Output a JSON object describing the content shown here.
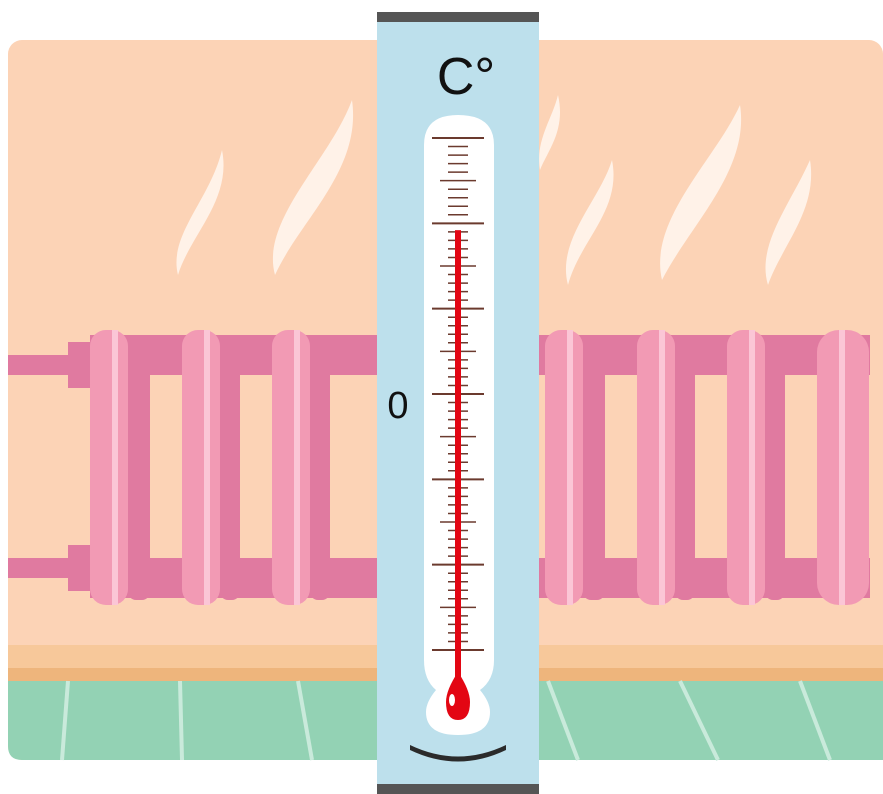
{
  "thermometer": {
    "unit_label": "C°",
    "zero_label": "0",
    "reading_fraction_of_scale": 0.82,
    "liquid_color": "#e30613"
  },
  "scene": {
    "object": "radiator",
    "wall_color": "#fcd3b6",
    "radiator_color": "#f29ab4",
    "floor_color": "#93d2b4",
    "panel_color": "#bde0ec"
  }
}
